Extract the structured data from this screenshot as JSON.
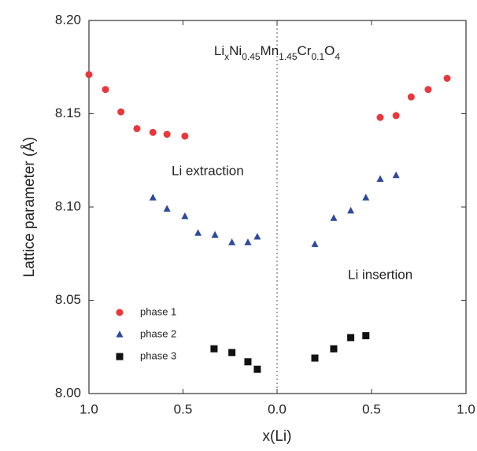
{
  "chart_data": {
    "type": "scatter",
    "title": [
      "Li",
      "x",
      "Ni",
      "0.45",
      "Mn",
      "1.45",
      "Cr",
      "0.1",
      "O",
      "4"
    ],
    "x_label": "x(Li)",
    "y_label": "Lattice parameter (Å)",
    "annotations": {
      "extraction": "Li extraction",
      "insertion": "Li insertion"
    },
    "extraction_xlim": [
      1,
      0
    ],
    "extraction_xticks": [
      {
        "value": 1,
        "label": "1.0"
      },
      0.5
    ],
    "insertion_xlim": [
      0,
      1
    ],
    "insertion_xticks": [
      {
        "value": 0,
        "label": "0.0"
      },
      0.5,
      {
        "value": 1,
        "label": "1.0"
      }
    ],
    "ylim": [
      8.0,
      8.2
    ],
    "yticks": [
      {
        "value": 8.0,
        "label": "8.00"
      },
      8.05,
      {
        "value": 8.1,
        "label": "8.10"
      },
      8.15,
      {
        "value": 8.2,
        "label": "8.20"
      }
    ],
    "series": [
      {
        "name": "phase 1",
        "color": "#e8383d",
        "marker": "circle",
        "extraction": {
          "x": [
            1.0,
            0.912,
            0.83,
            0.745,
            0.66,
            0.585,
            0.49
          ],
          "values": [
            8.171,
            8.163,
            8.151,
            8.142,
            8.14,
            8.139,
            8.138
          ]
        },
        "insertion": {
          "x": [
            0.546,
            0.63,
            0.71,
            0.8,
            0.9
          ],
          "values": [
            8.148,
            8.149,
            8.159,
            8.163,
            8.169
          ]
        }
      },
      {
        "name": "phase 2",
        "color": "#2e4a9e",
        "marker": "triangle",
        "extraction": {
          "x": [
            0.66,
            0.585,
            0.49,
            0.42,
            0.33,
            0.24,
            0.155,
            0.105
          ],
          "values": [
            8.105,
            8.099,
            8.095,
            8.086,
            8.085,
            8.081,
            8.081,
            8.084
          ]
        },
        "insertion": {
          "x": [
            0.2,
            0.3,
            0.39,
            0.47,
            0.546,
            0.63
          ],
          "values": [
            8.08,
            8.094,
            8.098,
            8.105,
            8.115,
            8.117
          ]
        }
      },
      {
        "name": "phase 3",
        "color": "#111111",
        "marker": "square",
        "extraction": {
          "x": [
            0.335,
            0.24,
            0.155,
            0.105
          ],
          "values": [
            8.024,
            8.022,
            8.017,
            8.013
          ]
        },
        "insertion": {
          "x": [
            0.2,
            0.3,
            0.39,
            0.47
          ],
          "values": [
            8.019,
            8.024,
            8.03,
            8.031
          ]
        }
      }
    ]
  }
}
